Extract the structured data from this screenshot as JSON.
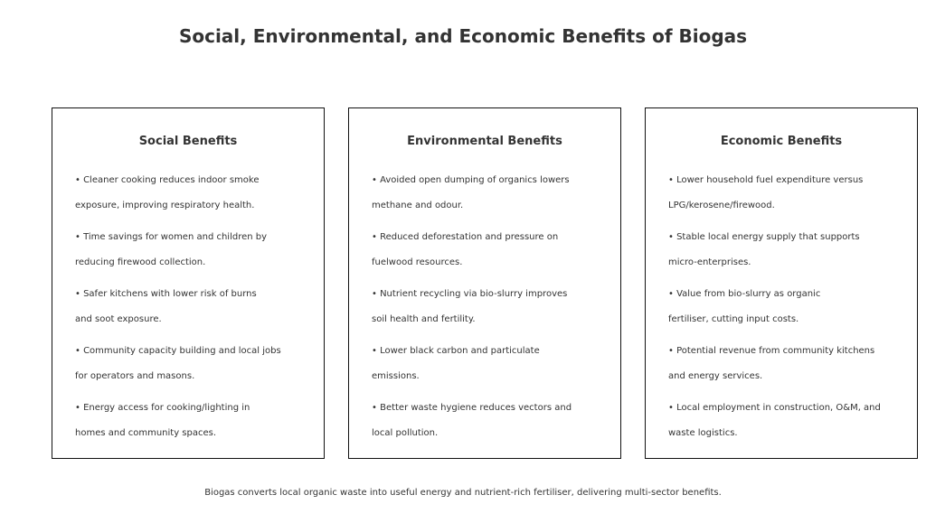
{
  "title": "Social, Environmental, and Economic Benefits of Biogas",
  "panels": [
    {
      "heading": "Social Benefits",
      "items": [
        [
          "• Cleaner cooking reduces indoor smoke",
          "exposure, improving respiratory health."
        ],
        [
          "• Time savings for women and children by",
          "reducing firewood collection."
        ],
        [
          "• Safer kitchens with lower risk of burns",
          "and soot exposure."
        ],
        [
          "• Community capacity building and local jobs",
          "for operators and masons."
        ],
        [
          "• Energy access for cooking/lighting in",
          "homes and community spaces."
        ]
      ]
    },
    {
      "heading": "Environmental Benefits",
      "items": [
        [
          "• Avoided open dumping of organics lowers",
          "methane and odour."
        ],
        [
          "• Reduced deforestation and pressure on",
          "fuelwood resources."
        ],
        [
          "• Nutrient recycling via bio-slurry improves",
          "soil health and fertility."
        ],
        [
          "• Lower black carbon and particulate",
          "emissions."
        ],
        [
          "• Better waste hygiene reduces vectors and",
          "local pollution."
        ]
      ]
    },
    {
      "heading": "Economic Benefits",
      "items": [
        [
          "• Lower household fuel expenditure versus",
          "LPG/kerosene/firewood."
        ],
        [
          "• Stable local energy supply that supports",
          "micro-enterprises."
        ],
        [
          "• Value from bio-slurry as organic",
          "fertiliser, cutting input costs."
        ],
        [
          "• Potential revenue from community kitchens",
          "and energy services."
        ],
        [
          "• Local employment in construction, O&M, and",
          "waste logistics."
        ]
      ]
    }
  ],
  "footer": "Biogas converts local organic waste into useful energy and nutrient-rich fertiliser, delivering multi-sector benefits."
}
